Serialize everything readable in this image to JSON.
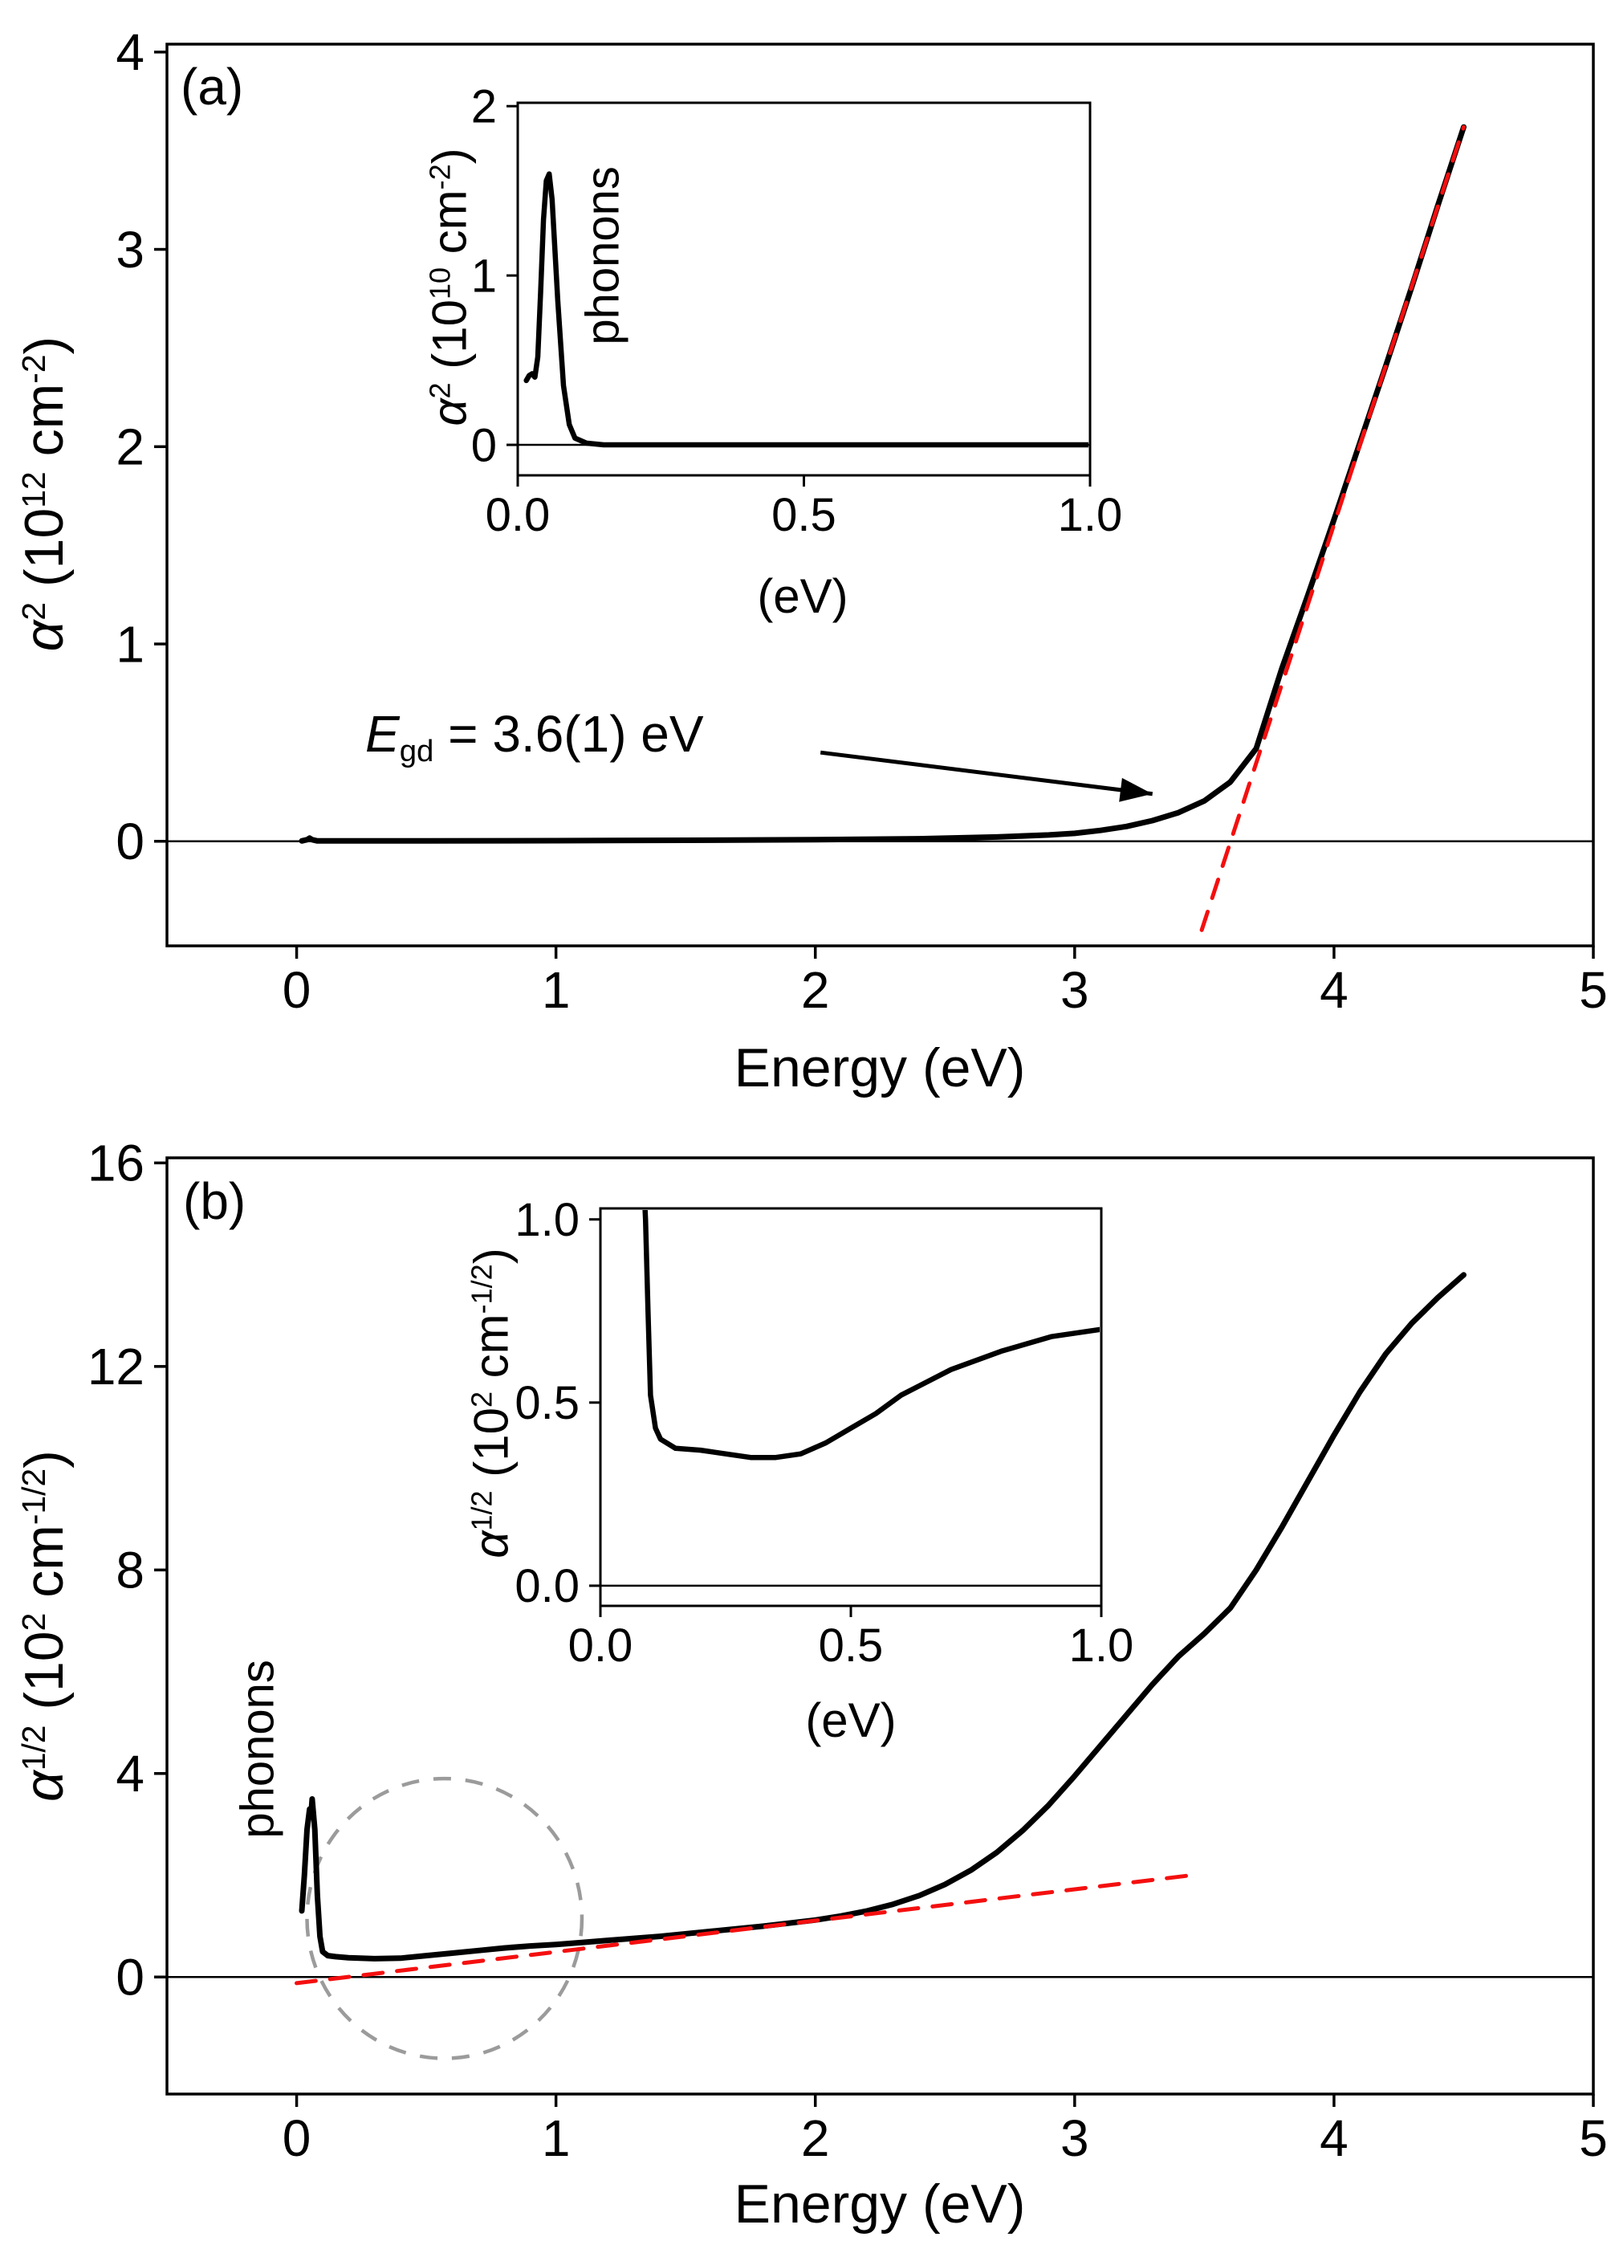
{
  "figure": {
    "background": "#ffffff",
    "curve_color": "#000000",
    "fit_color": "#f40f0f",
    "circle_color": "#9b9b9b"
  },
  "chart_data": [
    {
      "id": "panel_a",
      "type": "line",
      "panel_label": "(a)",
      "xlabel": "Energy (eV)",
      "ylabel_segments": [
        {
          "t": "α",
          "st": "i"
        },
        {
          "t": "2",
          "st": "sup"
        },
        {
          "t": " (10",
          "st": ""
        },
        {
          "t": "12",
          "st": "sup"
        },
        {
          "t": " cm",
          "st": ""
        },
        {
          "t": "-2",
          "st": "sup"
        },
        {
          "t": ")",
          "st": ""
        }
      ],
      "xlim": [
        -0.5,
        5.0
      ],
      "ylim": [
        -0.53,
        4.04
      ],
      "xtick_values": [
        0,
        1,
        2,
        3,
        4,
        5
      ],
      "xtick_labels": [
        "0",
        "1",
        "2",
        "3",
        "4",
        "5"
      ],
      "ytick_values": [
        0,
        1,
        2,
        3,
        4
      ],
      "ytick_labels": [
        "0",
        "1",
        "2",
        "3",
        "4"
      ],
      "zero_line": true,
      "legend": "none",
      "series": [
        {
          "name": "alpha-squared-curve",
          "color": "#000000",
          "width": 7,
          "dash": null,
          "x": [
            0.02,
            0.04,
            0.05,
            0.06,
            0.08,
            0.2,
            0.5,
            1.0,
            1.5,
            2.0,
            2.4,
            2.7,
            2.9,
            3.0,
            3.1,
            3.2,
            3.3,
            3.4,
            3.5,
            3.6,
            3.7,
            3.8,
            3.9,
            4.0,
            4.1,
            4.2,
            4.3,
            4.4,
            4.5
          ],
          "y": [
            0.002,
            0.008,
            0.016,
            0.008,
            0.002,
            0.002,
            0.002,
            0.003,
            0.005,
            0.008,
            0.013,
            0.022,
            0.032,
            0.04,
            0.055,
            0.075,
            0.105,
            0.145,
            0.205,
            0.3,
            0.47,
            0.88,
            1.25,
            1.63,
            2.02,
            2.41,
            2.81,
            3.22,
            3.62
          ]
        },
        {
          "name": "tauc-linear-fit",
          "color": "#f40f0f",
          "width": 5,
          "dash": "24 18",
          "x": [
            3.49,
            4.5
          ],
          "y": [
            -0.45,
            3.62
          ]
        }
      ],
      "annotation": {
        "segments": [
          {
            "t": "E",
            "st": "i"
          },
          {
            "t": "gd",
            "st": "sub"
          },
          {
            "t": " = 3.6(1) eV",
            "st": ""
          }
        ],
        "band_gap_eV": "3.6(1)",
        "arrow": {
          "x1": 2.02,
          "y1": 0.45,
          "x2": 3.3,
          "y2": 0.24
        }
      }
    },
    {
      "id": "panel_a_inset",
      "type": "line",
      "xlabel": "(eV)",
      "extra_label": "phonons",
      "ylabel_segments": [
        {
          "t": "α",
          "st": "i"
        },
        {
          "t": "2",
          "st": "sup"
        },
        {
          "t": " (10",
          "st": ""
        },
        {
          "t": "10",
          "st": "sup"
        },
        {
          "t": " cm",
          "st": ""
        },
        {
          "t": "-2",
          "st": "sup"
        },
        {
          "t": ")",
          "st": ""
        }
      ],
      "xlim": [
        0,
        1.0
      ],
      "ylim": [
        -0.18,
        2.02
      ],
      "xtick_values": [
        0.0,
        0.5,
        1.0
      ],
      "xtick_labels": [
        "0.0",
        "0.5",
        "1.0"
      ],
      "ytick_values": [
        0,
        1,
        2
      ],
      "ytick_labels": [
        "0",
        "1",
        "2"
      ],
      "zero_line": true,
      "series": [
        {
          "name": "phonon-peak-curve",
          "color": "#000000",
          "width": 6.5,
          "dash": null,
          "x": [
            0.015,
            0.02,
            0.025,
            0.03,
            0.035,
            0.04,
            0.045,
            0.05,
            0.055,
            0.06,
            0.07,
            0.08,
            0.09,
            0.1,
            0.12,
            0.15,
            0.2,
            0.3,
            0.4,
            0.5,
            0.6,
            0.7,
            0.8,
            0.9,
            1.0
          ],
          "y": [
            0.38,
            0.41,
            0.42,
            0.4,
            0.52,
            0.9,
            1.33,
            1.56,
            1.6,
            1.45,
            0.85,
            0.35,
            0.12,
            0.04,
            0.01,
            0.0,
            0.0,
            0.0,
            0.0,
            0.0,
            0.0,
            0.0,
            0.0,
            0.0,
            0.0
          ]
        }
      ]
    },
    {
      "id": "panel_b",
      "type": "line",
      "panel_label": "(b)",
      "xlabel": "Energy (eV)",
      "extra_label": "phonons",
      "ylabel_segments": [
        {
          "t": "α",
          "st": "i"
        },
        {
          "t": "1/2",
          "st": "sup"
        },
        {
          "t": " (10",
          "st": ""
        },
        {
          "t": "2",
          "st": "sup"
        },
        {
          "t": " cm",
          "st": ""
        },
        {
          "t": "-1/2",
          "st": "sup"
        },
        {
          "t": ")",
          "st": ""
        }
      ],
      "xlim": [
        -0.5,
        5.0
      ],
      "ylim": [
        -2.3,
        16.1
      ],
      "xtick_values": [
        0,
        1,
        2,
        3,
        4,
        5
      ],
      "xtick_labels": [
        "0",
        "1",
        "2",
        "3",
        "4",
        "5"
      ],
      "ytick_values": [
        0,
        4,
        8,
        12,
        16
      ],
      "ytick_labels": [
        "0",
        "4",
        "8",
        "12",
        "16"
      ],
      "zero_line": true,
      "ellipse": {
        "cx": 0.57,
        "cy": 1.15,
        "rx": 0.53,
        "ry": 2.75,
        "color": "#9b9b9b",
        "dash": "22 18",
        "width": 4.5
      },
      "series": [
        {
          "name": "alpha-sqrt-curve",
          "color": "#000000",
          "width": 7,
          "dash": null,
          "x": [
            0.02,
            0.03,
            0.04,
            0.05,
            0.055,
            0.06,
            0.07,
            0.08,
            0.09,
            0.1,
            0.12,
            0.15,
            0.2,
            0.3,
            0.4,
            0.5,
            0.6,
            0.7,
            0.8,
            0.9,
            1.0,
            1.1,
            1.2,
            1.4,
            1.6,
            1.8,
            2.0,
            2.1,
            2.2,
            2.3,
            2.4,
            2.5,
            2.6,
            2.7,
            2.8,
            2.9,
            3.0,
            3.1,
            3.2,
            3.3,
            3.4,
            3.5,
            3.6,
            3.7,
            3.8,
            3.9,
            4.0,
            4.1,
            4.2,
            4.3,
            4.4,
            4.5
          ],
          "y": [
            1.3,
            2.0,
            2.9,
            3.3,
            3.15,
            3.5,
            2.9,
            1.6,
            0.8,
            0.5,
            0.42,
            0.4,
            0.38,
            0.36,
            0.37,
            0.42,
            0.47,
            0.52,
            0.57,
            0.61,
            0.64,
            0.68,
            0.72,
            0.8,
            0.9,
            1.0,
            1.12,
            1.2,
            1.3,
            1.43,
            1.6,
            1.82,
            2.1,
            2.45,
            2.88,
            3.38,
            3.95,
            4.55,
            5.15,
            5.75,
            6.3,
            6.75,
            7.25,
            8.0,
            8.85,
            9.75,
            10.65,
            11.5,
            12.25,
            12.85,
            13.35,
            13.8
          ]
        },
        {
          "name": "urbach-linear-fit",
          "color": "#f40f0f",
          "width": 5,
          "dash": "24 18",
          "x": [
            0.0,
            3.45
          ],
          "y": [
            -0.12,
            2.0
          ]
        }
      ]
    },
    {
      "id": "panel_b_inset",
      "type": "line",
      "xlabel": "(eV)",
      "ylabel_segments": [
        {
          "t": "α",
          "st": "i"
        },
        {
          "t": "1/2",
          "st": "sup"
        },
        {
          "t": " (10",
          "st": ""
        },
        {
          "t": "2",
          "st": "sup"
        },
        {
          "t": " cm",
          "st": ""
        },
        {
          "t": "-1/2",
          "st": "sup"
        },
        {
          "t": ")",
          "st": ""
        }
      ],
      "xlim": [
        0,
        1.0
      ],
      "ylim": [
        -0.055,
        1.03
      ],
      "xtick_values": [
        0.0,
        0.5,
        1.0
      ],
      "xtick_labels": [
        "0.0",
        "0.5",
        "1.0"
      ],
      "ytick_values": [
        0.0,
        0.5,
        1.0
      ],
      "ytick_labels": [
        "0.0",
        "0.5",
        "1.0"
      ],
      "zero_line": true,
      "series": [
        {
          "name": "alpha-sqrt-lowE-curve",
          "color": "#000000",
          "width": 6.5,
          "dash": null,
          "x": [
            0.08,
            0.085,
            0.09,
            0.095,
            0.1,
            0.11,
            0.12,
            0.15,
            0.2,
            0.25,
            0.3,
            0.35,
            0.4,
            0.45,
            0.5,
            0.55,
            0.6,
            0.7,
            0.8,
            0.9,
            1.0
          ],
          "y": [
            1.2,
            1.15,
            1.0,
            0.75,
            0.52,
            0.43,
            0.4,
            0.375,
            0.37,
            0.36,
            0.35,
            0.35,
            0.36,
            0.39,
            0.43,
            0.47,
            0.52,
            0.59,
            0.64,
            0.68,
            0.7
          ]
        }
      ]
    }
  ]
}
